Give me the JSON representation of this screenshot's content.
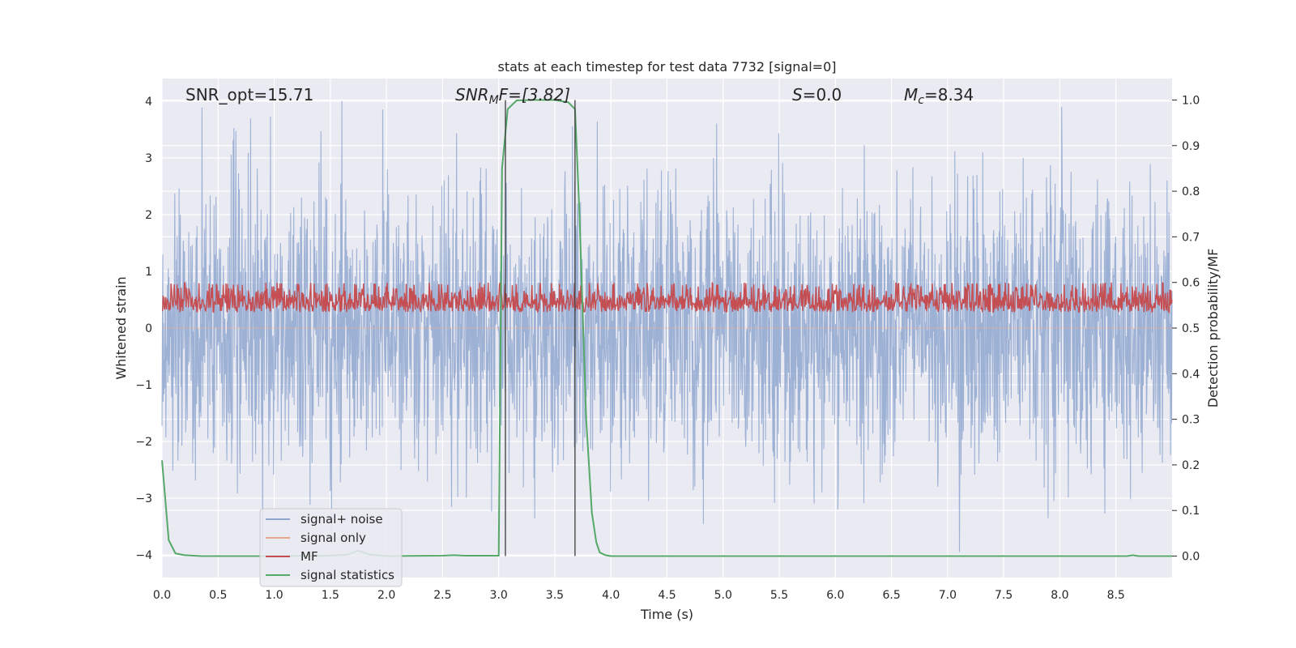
{
  "chart_data": {
    "type": "line",
    "title": "stats at each timestep for test data 7732 [signal=0]",
    "xlabel": "Time (s)",
    "ylabel": "Whitened strain",
    "y2label": "Detection probability/MF",
    "xlim": [
      0.0,
      9.0
    ],
    "ylim": [
      -4.4,
      4.4
    ],
    "y2lim": [
      -0.047,
      1.047
    ],
    "xticks": [
      0.0,
      0.5,
      1.0,
      1.5,
      2.0,
      2.5,
      3.0,
      3.5,
      4.0,
      4.5,
      5.0,
      5.5,
      6.0,
      6.5,
      7.0,
      7.5,
      8.0,
      8.5
    ],
    "xtick_labels": [
      "0.0",
      "0.5",
      "1.0",
      "1.5",
      "2.0",
      "2.5",
      "3.0",
      "3.5",
      "4.0",
      "4.5",
      "5.0",
      "5.5",
      "6.0",
      "6.5",
      "7.0",
      "7.5",
      "8.0",
      "8.5"
    ],
    "yticks": [
      4,
      3,
      2,
      1,
      0,
      -1,
      -2,
      -3,
      -4
    ],
    "ytick_labels": [
      "4",
      "3",
      "2",
      "1",
      "0",
      "−1",
      "−2",
      "−3",
      "−4"
    ],
    "y2ticks": [
      1.0,
      0.9,
      0.8,
      0.7,
      0.6,
      0.5,
      0.4,
      0.3,
      0.2,
      0.1,
      0.0
    ],
    "y2tick_labels": [
      "1.0",
      "0.9",
      "0.8",
      "0.7",
      "0.6",
      "0.5",
      "0.4",
      "0.3",
      "0.2",
      "0.1",
      "0.0"
    ],
    "grid": true,
    "legend_position": "lower-left",
    "annotations": {
      "snr_opt": "SNR_opt=15.71",
      "snr_mf_prefix": "SNR",
      "snr_mf_sub": "M",
      "snr_mf_rest": "F=[3.82]",
      "s_label": "S",
      "s_value": "=0.0",
      "mc_label": "M",
      "mc_sub": "c",
      "mc_value": "=8.34"
    },
    "series": [
      {
        "name": "signal+ noise",
        "color": "#8fa7d0",
        "axis": "left",
        "description_values": {
          "t_start": 0.0,
          "t_end": 9.0,
          "typical_amplitude": 1.6,
          "max_excursion": 4.0
        }
      },
      {
        "name": "signal only",
        "color": "#e8a58a",
        "axis": "left",
        "values_constant": 0.0
      },
      {
        "name": "MF",
        "color": "#c44e52",
        "axis": "right",
        "value_range": [
          0.5,
          0.6
        ]
      },
      {
        "name": "signal statistics",
        "color": "#55a868",
        "axis": "right",
        "x": [
          0.0,
          0.06,
          0.12,
          0.2,
          0.35,
          0.6,
          1.0,
          1.5,
          1.65,
          1.75,
          1.85,
          2.0,
          2.5,
          2.6,
          2.7,
          3.0,
          3.03,
          3.08,
          3.16,
          3.3,
          3.5,
          3.62,
          3.68,
          3.72,
          3.78,
          3.83,
          3.87,
          3.9,
          3.95,
          4.0,
          4.5,
          6.0,
          8.0,
          8.6,
          8.65,
          8.7,
          9.0
        ],
        "y": [
          0.21,
          0.035,
          0.006,
          0.002,
          0.0,
          0.0,
          0.0,
          0.001,
          0.003,
          0.012,
          0.003,
          0.0,
          0.001,
          0.002,
          0.001,
          0.001,
          0.85,
          0.98,
          0.999,
          1.0,
          1.0,
          0.995,
          0.98,
          0.75,
          0.3,
          0.095,
          0.03,
          0.008,
          0.002,
          0.0,
          0.0,
          0.0,
          0.0,
          0.0,
          0.002,
          0.0,
          0.0
        ]
      }
    ],
    "vertical_lines_x": [
      3.06,
      3.68
    ],
    "vertical_line_color": "#3c3c3c",
    "background_color": "#eaeaf2"
  }
}
